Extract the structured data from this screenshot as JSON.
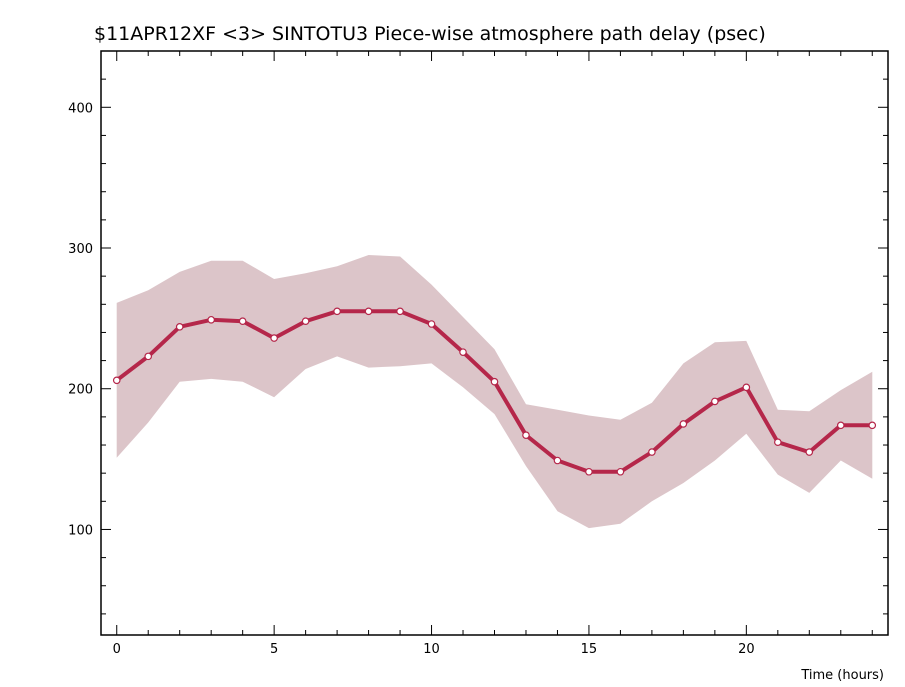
{
  "chart_data": {
    "type": "line",
    "title": "$11APR12XF <3>  SINTOTU3  Piece-wise atmosphere path delay (psec)",
    "xlabel": "Time (hours)",
    "ylabel": "",
    "xlim": [
      -0.5,
      24.5
    ],
    "ylim": [
      25,
      440
    ],
    "x_ticks": [
      0,
      5,
      10,
      15,
      20
    ],
    "y_ticks": [
      100,
      200,
      300,
      400
    ],
    "x_minor_step": 1,
    "y_minor_step": 20,
    "grid": false,
    "colors": {
      "line": "#b5274a",
      "band": "#dcc5c9",
      "marker_fill": "#ffffff"
    },
    "series": [
      {
        "x": [
          0,
          1,
          2,
          3,
          4,
          5,
          6,
          7,
          8,
          9,
          10,
          11,
          12,
          13,
          14,
          15,
          16,
          17,
          18,
          19,
          20,
          21,
          22,
          23,
          24
        ],
        "values": [
          206,
          223,
          244,
          249,
          248,
          236,
          248,
          255,
          255,
          255,
          246,
          226,
          205,
          167,
          149,
          141,
          141,
          155,
          175,
          191,
          201,
          162,
          155,
          174,
          174
        ],
        "upper": [
          261,
          270,
          283,
          291,
          291,
          278,
          282,
          287,
          295,
          294,
          274,
          251,
          228,
          189,
          185,
          181,
          178,
          190,
          218,
          233,
          234,
          185,
          184,
          199,
          212
        ],
        "lower": [
          151,
          176,
          205,
          207,
          205,
          194,
          214,
          223,
          215,
          216,
          218,
          201,
          182,
          145,
          113,
          101,
          104,
          120,
          133,
          149,
          168,
          139,
          126,
          149,
          136
        ]
      }
    ]
  }
}
